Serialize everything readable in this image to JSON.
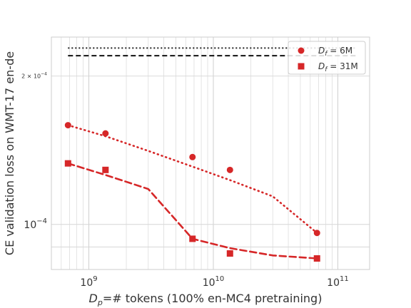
{
  "chart_data": {
    "type": "scatter",
    "xlabel": "D_p=# tokens (100% en-MC4 pretraining)",
    "xlabel_parts": {
      "var": "D",
      "sub": "p",
      "rest": "=# tokens (100% en-MC4 pretraining)"
    },
    "ylabel": "CE validation loss on WMT-17 en-de",
    "x_scale": "log",
    "y_scale": "log",
    "xlim": [
      500000000,
      180000000000
    ],
    "ylim": [
      8.1e-05,
      0.00024
    ],
    "grid": true,
    "x_ticks": [
      {
        "value": 1000000000,
        "base": "10",
        "exp": "9"
      },
      {
        "value": 10000000000,
        "base": "10",
        "exp": "10"
      },
      {
        "value": 100000000000,
        "base": "10",
        "exp": "11"
      }
    ],
    "y_ticks": [
      {
        "value": 0.0001,
        "base": "10",
        "exp": "−4",
        "prefix": ""
      },
      {
        "value": 0.0002,
        "base": "10",
        "exp": "−4",
        "prefix": "2 × "
      }
    ],
    "legend": {
      "position": "top-right",
      "entries": [
        {
          "var": "D",
          "sub": "f",
          "rest": " = 6M",
          "marker": "circle"
        },
        {
          "var": "D",
          "sub": "f",
          "rest": " = 31M",
          "marker": "square"
        }
      ]
    },
    "series": [
      {
        "name": "D_f = 6M",
        "marker": "circle",
        "color": "#d62728",
        "points": [
          {
            "x": 680000000,
            "y": 0.000159
          },
          {
            "x": 1360000000,
            "y": 0.000153
          },
          {
            "x": 6800000000,
            "y": 0.000137
          },
          {
            "x": 13600000000,
            "y": 0.000129
          },
          {
            "x": 68000000000,
            "y": 9.61e-05
          }
        ],
        "fit_style": "dotted",
        "fit": [
          {
            "x": 680000000,
            "y": 0.000159
          },
          {
            "x": 1360000000,
            "y": 0.000151
          },
          {
            "x": 3000000000,
            "y": 0.000141
          },
          {
            "x": 6800000000,
            "y": 0.000131
          },
          {
            "x": 13600000000,
            "y": 0.000123
          },
          {
            "x": 30000000000,
            "y": 0.000114
          },
          {
            "x": 68000000000,
            "y": 9.61e-05
          }
        ]
      },
      {
        "name": "D_f = 31M",
        "marker": "square",
        "color": "#d62728",
        "points": [
          {
            "x": 680000000,
            "y": 0.000133
          },
          {
            "x": 1360000000,
            "y": 0.000129
          },
          {
            "x": 6800000000,
            "y": 9.35e-05
          },
          {
            "x": 13600000000,
            "y": 8.73e-05
          },
          {
            "x": 68000000000,
            "y": 8.53e-05
          }
        ],
        "fit_style": "dashed",
        "fit": [
          {
            "x": 680000000,
            "y": 0.000133
          },
          {
            "x": 1360000000,
            "y": 0.000126
          },
          {
            "x": 3000000000,
            "y": 0.000118
          },
          {
            "x": 6800000000,
            "y": 9.35e-05
          },
          {
            "x": 13600000000,
            "y": 8.95e-05
          },
          {
            "x": 30000000000,
            "y": 8.65e-05
          },
          {
            "x": 68000000000,
            "y": 8.53e-05
          }
        ]
      }
    ],
    "reference_lines": [
      {
        "y": 0.000228,
        "style": "dotted",
        "color": "#222222",
        "x_from": 680000000,
        "x_to": 140000000000
      },
      {
        "y": 0.00022,
        "style": "dashed",
        "color": "#111111",
        "x_from": 680000000,
        "x_to": 140000000000
      }
    ]
  }
}
